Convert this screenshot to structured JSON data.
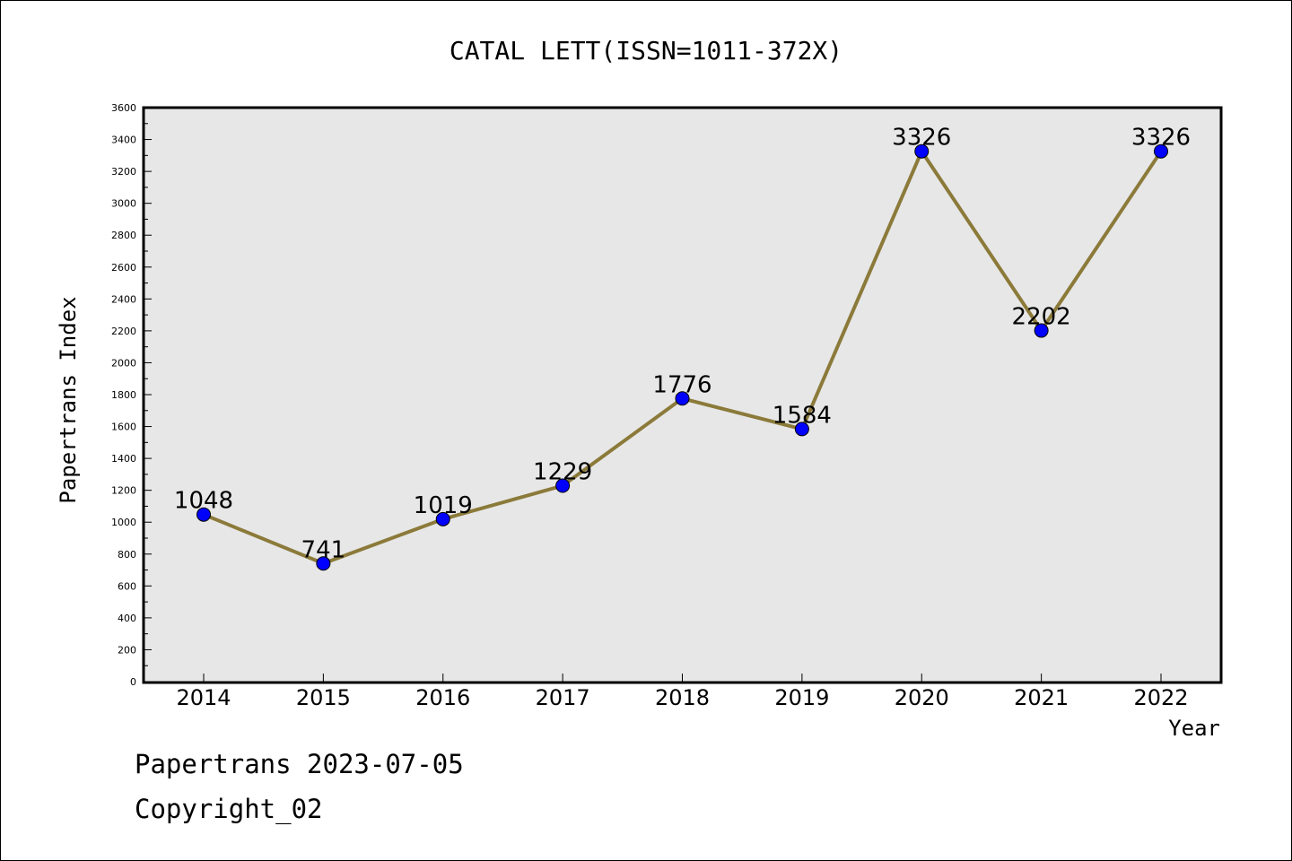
{
  "chart_data": {
    "type": "line",
    "title": "CATAL LETT(ISSN=1011-372X)",
    "xlabel": "Year",
    "ylabel": "Papertrans Index",
    "categories": [
      "2014",
      "2015",
      "2016",
      "2017",
      "2018",
      "2019",
      "2020",
      "2021",
      "2022"
    ],
    "series": [
      {
        "values": [
          1048,
          741,
          1019,
          1229,
          1776,
          1584,
          3326,
          2202,
          3326
        ]
      }
    ],
    "data_labels": [
      "1048",
      "741",
      "1019",
      "1229",
      "1776",
      "1584",
      "3326",
      "2202",
      "3326"
    ],
    "ylim": [
      0,
      3600
    ],
    "yticks": [
      0,
      200,
      400,
      600,
      800,
      1000,
      1200,
      1400,
      1600,
      1800,
      2000,
      2200,
      2400,
      2600,
      2800,
      3000,
      3200,
      3400,
      3600
    ],
    "ytick_labels": [
      "0",
      "200",
      "400",
      "600",
      "800",
      "1000",
      "1200",
      "1400",
      "1600",
      "1800",
      "2000",
      "2200",
      "2400",
      "2600",
      "2800",
      "3000",
      "3200",
      "3400",
      "3600"
    ],
    "grid": false,
    "colors": {
      "line": "#8b7a3a",
      "marker": "#0000ff",
      "plot_background": "#e7e7e7"
    }
  },
  "footer": {
    "line1": "Papertrans 2023-07-05",
    "line2": "Copyright_02"
  }
}
